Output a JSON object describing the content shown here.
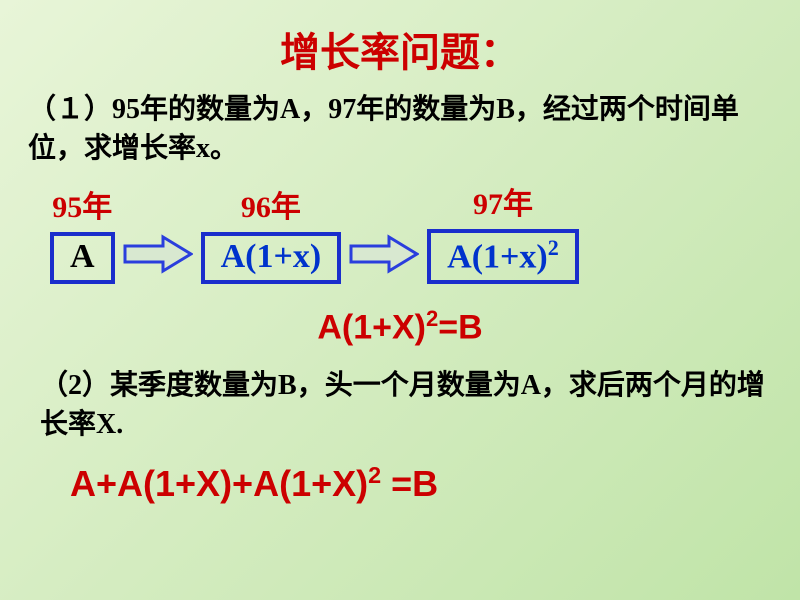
{
  "title": "增长率问题：",
  "colors": {
    "title": "#cc0000",
    "body_text": "#000000",
    "year_text": "#cc0000",
    "box_border": "#1a2ecc",
    "box_text_black": "#000000",
    "box_text_blue": "#0033cc",
    "equation_red": "#cc0000",
    "arrow_outline": "#2a3edd",
    "arrow_fill": "#d8e8d0"
  },
  "problem1": {
    "label": "（１）",
    "text": "95年的数量为A，97年的数量为B，经过两个时间单位，求增长率x。",
    "stages": [
      {
        "year": "95年",
        "expr_html": "A",
        "color": "black"
      },
      {
        "year": "96年",
        "expr_html": "A(1+x)",
        "color": "blue"
      },
      {
        "year": "97年",
        "expr_html": "A(1+x)<sup>2</sup>",
        "color": "blue"
      }
    ],
    "equation_html": "A(1+X)<sup>2</sup>=B"
  },
  "problem2": {
    "label": "（2）",
    "text": "某季度数量为B，头一个月数量为A，求后两个月的增长率X.",
    "equation_html": "A+A(1+X)+A(1+X)<sup>2</sup> =B"
  },
  "arrow": {
    "width": 70,
    "height": 40,
    "stroke_width": 3
  }
}
